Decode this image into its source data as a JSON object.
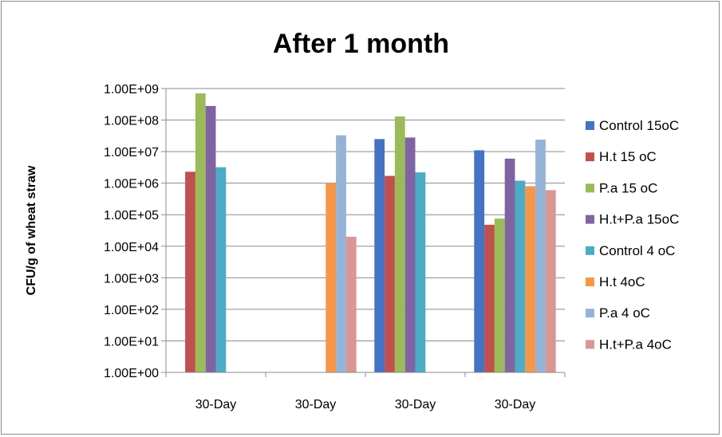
{
  "chart_data": {
    "type": "bar",
    "title": "After 1 month",
    "xlabel": "",
    "ylabel": "CFU/g of wheat straw",
    "yscale": "log",
    "ylim": [
      1,
      1000000000
    ],
    "yticks": [
      1,
      10,
      100,
      1000,
      10000,
      100000,
      1000000,
      10000000,
      100000000,
      1000000000
    ],
    "ytick_labels": [
      "1.00E+00",
      "1.00E+01",
      "1.00E+02",
      "1.00E+03",
      "1.00E+04",
      "1.00E+05",
      "1.00E+06",
      "1.00E+07",
      "1.00E+08",
      "1.00E+09"
    ],
    "categories": [
      "30-Day",
      "30-Day",
      "30-Day",
      "30-Day"
    ],
    "grid": true,
    "legend": "right",
    "series": [
      {
        "name": "Control 15oC",
        "color": "#4472C4",
        "values": [
          null,
          null,
          25000000,
          11000000
        ]
      },
      {
        "name": "H.t 15 oC",
        "color": "#C0504D",
        "values": [
          2300000,
          null,
          1700000,
          48000
        ]
      },
      {
        "name": "P.a  15 oC",
        "color": "#9BBB59",
        "values": [
          700000000,
          null,
          130000000,
          75000
        ]
      },
      {
        "name": "H.t+P.a 15oC",
        "color": "#8064A2",
        "values": [
          280000000,
          null,
          28000000,
          6000000
        ]
      },
      {
        "name": "Control 4 oC",
        "color": "#4BACC6",
        "values": [
          3200000,
          null,
          2200000,
          1200000
        ]
      },
      {
        "name": "H.t 4oC",
        "color": "#F79646",
        "values": [
          null,
          1000000,
          null,
          800000
        ]
      },
      {
        "name": "P.a  4 oC",
        "color": "#95B3D7",
        "values": [
          null,
          33000000,
          null,
          24000000
        ]
      },
      {
        "name": "H.t+P.a 4oC",
        "color": "#D99694",
        "values": [
          null,
          20000,
          null,
          600000
        ]
      }
    ]
  }
}
